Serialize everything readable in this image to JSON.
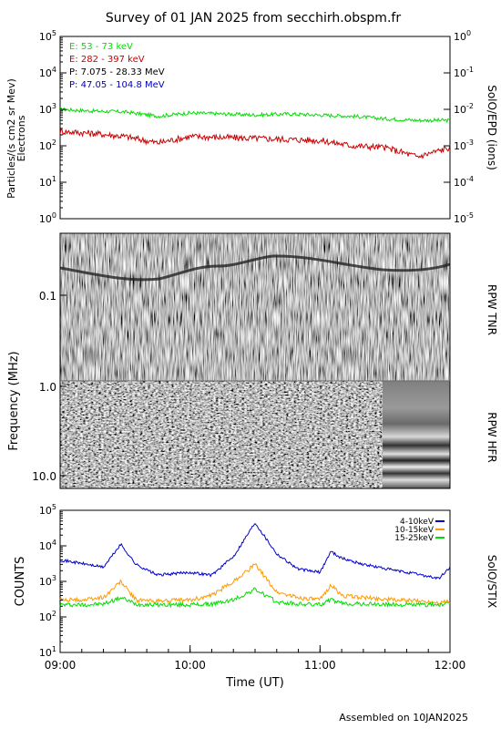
{
  "title": "Survey of 01 JAN 2025 from secchirh.obspm.fr",
  "footer": "Assembled on  10JAN2025",
  "chart_data": [
    {
      "type": "line",
      "panel": "SolO/EPD particles",
      "ylabel": "Particles/(s cm2 sr Mev)",
      "ylabel2": "Electrons",
      "right_label": "SolO/EPD (ions)",
      "yscale": "log",
      "ylim": [
        1,
        100000
      ],
      "yticks": [
        "10^0",
        "10^1",
        "10^2",
        "10^3",
        "10^4",
        "10^5"
      ],
      "y2lim": [
        1e-05,
        1000000000
      ],
      "y2ticks": [
        "10^-5",
        "10^-4",
        "10^-3",
        "10^-2",
        "10^-1",
        "10^0"
      ],
      "xlim": [
        "09:00",
        "12:00"
      ],
      "legend": [
        {
          "name": "E: 53 - 73 keV",
          "color": "#00e000"
        },
        {
          "name": "E: 282 - 397 keV",
          "color": "#cc0000"
        },
        {
          "name": "P: 7.075 - 28.33 MeV",
          "color": "#000000"
        },
        {
          "name": "P: 47.05 - 104.8 MeV",
          "color": "#0000cc"
        }
      ],
      "series": [
        {
          "name": "E: 53 - 73 keV",
          "color": "#00e000",
          "x": [
            "09:00",
            "09:15",
            "09:30",
            "09:45",
            "10:00",
            "10:15",
            "10:30",
            "10:45",
            "11:00",
            "11:15",
            "11:30",
            "11:45",
            "12:00"
          ],
          "values": [
            1000,
            900,
            850,
            650,
            800,
            750,
            700,
            750,
            700,
            650,
            550,
            500,
            500
          ]
        },
        {
          "name": "E: 282 - 397 keV",
          "color": "#cc0000",
          "x": [
            "09:00",
            "09:15",
            "09:30",
            "09:45",
            "10:00",
            "10:15",
            "10:30",
            "10:45",
            "11:00",
            "11:15",
            "11:30",
            "11:45",
            "12:00"
          ],
          "values": [
            250,
            220,
            180,
            120,
            180,
            170,
            160,
            150,
            140,
            100,
            90,
            50,
            90
          ]
        }
      ]
    },
    {
      "type": "heatmap",
      "panel": "RPW radio spectrogram",
      "ylabel": "Frequency (MHz)",
      "yscale": "log",
      "yticks": [
        "0.1",
        "1.0",
        "10.0"
      ],
      "sub_panels": [
        {
          "name": "RPW TNR",
          "range": "0.1 - 1.0 MHz"
        },
        {
          "name": "RPW HFR",
          "range": "1.0 - 10.0 MHz"
        }
      ],
      "xlim": [
        "09:00",
        "12:00"
      ]
    },
    {
      "type": "line",
      "panel": "SolO/STIX",
      "ylabel": "COUNTS",
      "right_label": "SolO/STIX",
      "xlabel": "Time (UT)",
      "xticks": [
        "09:00",
        "10:00",
        "11:00",
        "12:00"
      ],
      "yscale": "log",
      "ylim": [
        10,
        100000
      ],
      "yticks": [
        "10^1",
        "10^2",
        "10^3",
        "10^4",
        "10^5"
      ],
      "legend_position": "top-right",
      "series": [
        {
          "name": "4-10keV",
          "color": "#0000cc",
          "x": [
            "09:00",
            "09:10",
            "09:20",
            "09:28",
            "09:35",
            "09:45",
            "10:00",
            "10:10",
            "10:20",
            "10:30",
            "10:40",
            "10:50",
            "11:00",
            "11:05",
            "11:10",
            "11:20",
            "11:35",
            "11:45",
            "11:55",
            "12:00"
          ],
          "values": [
            4000,
            3200,
            2500,
            11000,
            3000,
            1500,
            1800,
            1500,
            5000,
            45000,
            6000,
            2200,
            1800,
            7000,
            4500,
            3000,
            2000,
            1600,
            1200,
            2500
          ]
        },
        {
          "name": "10-15keV",
          "color": "#ff9900",
          "x": [
            "09:00",
            "09:10",
            "09:20",
            "09:28",
            "09:35",
            "09:45",
            "10:00",
            "10:10",
            "10:20",
            "10:30",
            "10:40",
            "10:50",
            "11:00",
            "11:05",
            "11:10",
            "11:20",
            "11:35",
            "11:45",
            "11:55",
            "12:00"
          ],
          "values": [
            300,
            300,
            350,
            1000,
            300,
            280,
            300,
            400,
            1000,
            3000,
            500,
            350,
            300,
            800,
            400,
            350,
            300,
            280,
            260,
            270
          ]
        },
        {
          "name": "15-25keV",
          "color": "#00dd00",
          "x": [
            "09:00",
            "09:10",
            "09:20",
            "09:28",
            "09:35",
            "09:45",
            "10:00",
            "10:10",
            "10:20",
            "10:30",
            "10:40",
            "10:50",
            "11:00",
            "11:05",
            "11:10",
            "11:20",
            "11:35",
            "11:45",
            "11:55",
            "12:00"
          ],
          "values": [
            220,
            220,
            230,
            350,
            230,
            220,
            220,
            230,
            300,
            600,
            260,
            230,
            220,
            300,
            240,
            230,
            220,
            220,
            220,
            230
          ]
        }
      ]
    }
  ]
}
